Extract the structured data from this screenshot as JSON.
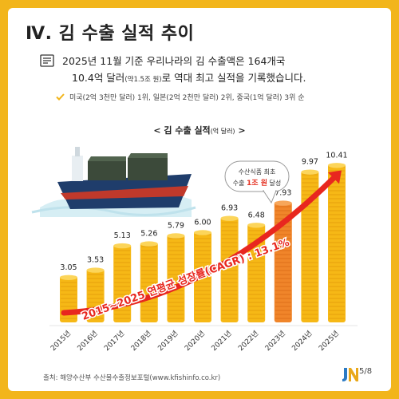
{
  "header": {
    "title": "Ⅳ. 김 수출 실적 추이"
  },
  "summary": {
    "line1": "2025년 11월 기준 우리나라의 김 수출액은 164개국",
    "line2a": "10.4억 달러",
    "line2b": "(약1.5조 원)",
    "line2c": "로 역대 최고 실적을 기록했습니다."
  },
  "ranking": "미국(2억 3천만 달러) 1위, 일본(2억 2천만 달러) 2위, 중국(1억 달러) 3위 순",
  "chart_title": "< 김 수출 실적",
  "chart_unit": "(억 달러)",
  "chart_title_end": " >",
  "colors": {
    "background": "#f2b51b",
    "bar": "#f6b816",
    "bar_highlight": "#f0852a",
    "arrow": "#e8271f",
    "callout_accent": "#e53324"
  },
  "chart_data": {
    "type": "bar",
    "categories": [
      "2015년",
      "2016년",
      "2017년",
      "2018년",
      "2019년",
      "2020년",
      "2021년",
      "2022년",
      "2023년",
      "2024년",
      "2025년"
    ],
    "values": [
      3.05,
      3.53,
      5.13,
      5.26,
      5.79,
      6.0,
      6.93,
      6.48,
      7.93,
      9.97,
      10.41
    ],
    "value_labels": [
      "3.05",
      "3.53",
      "5.13",
      "5.26",
      "5.79",
      "6.00",
      "6.93",
      "6.48",
      "7.93",
      "9.97",
      "10.41"
    ],
    "highlight_category": "2023년",
    "ylim": [
      0,
      11
    ],
    "annotation": "2015~2025 연평균 성장률(CAGR) : 13.1%",
    "callout": {
      "line1": "수산식품 최초",
      "line2_prefix": "수출 ",
      "line2_highlight": "1조 원",
      "line2_suffix": " 달성"
    }
  },
  "footer": {
    "source": "출처: 해양수산부 수산물수출정보포털(www.kfishinfo.co.kr)",
    "page": "5/8"
  }
}
